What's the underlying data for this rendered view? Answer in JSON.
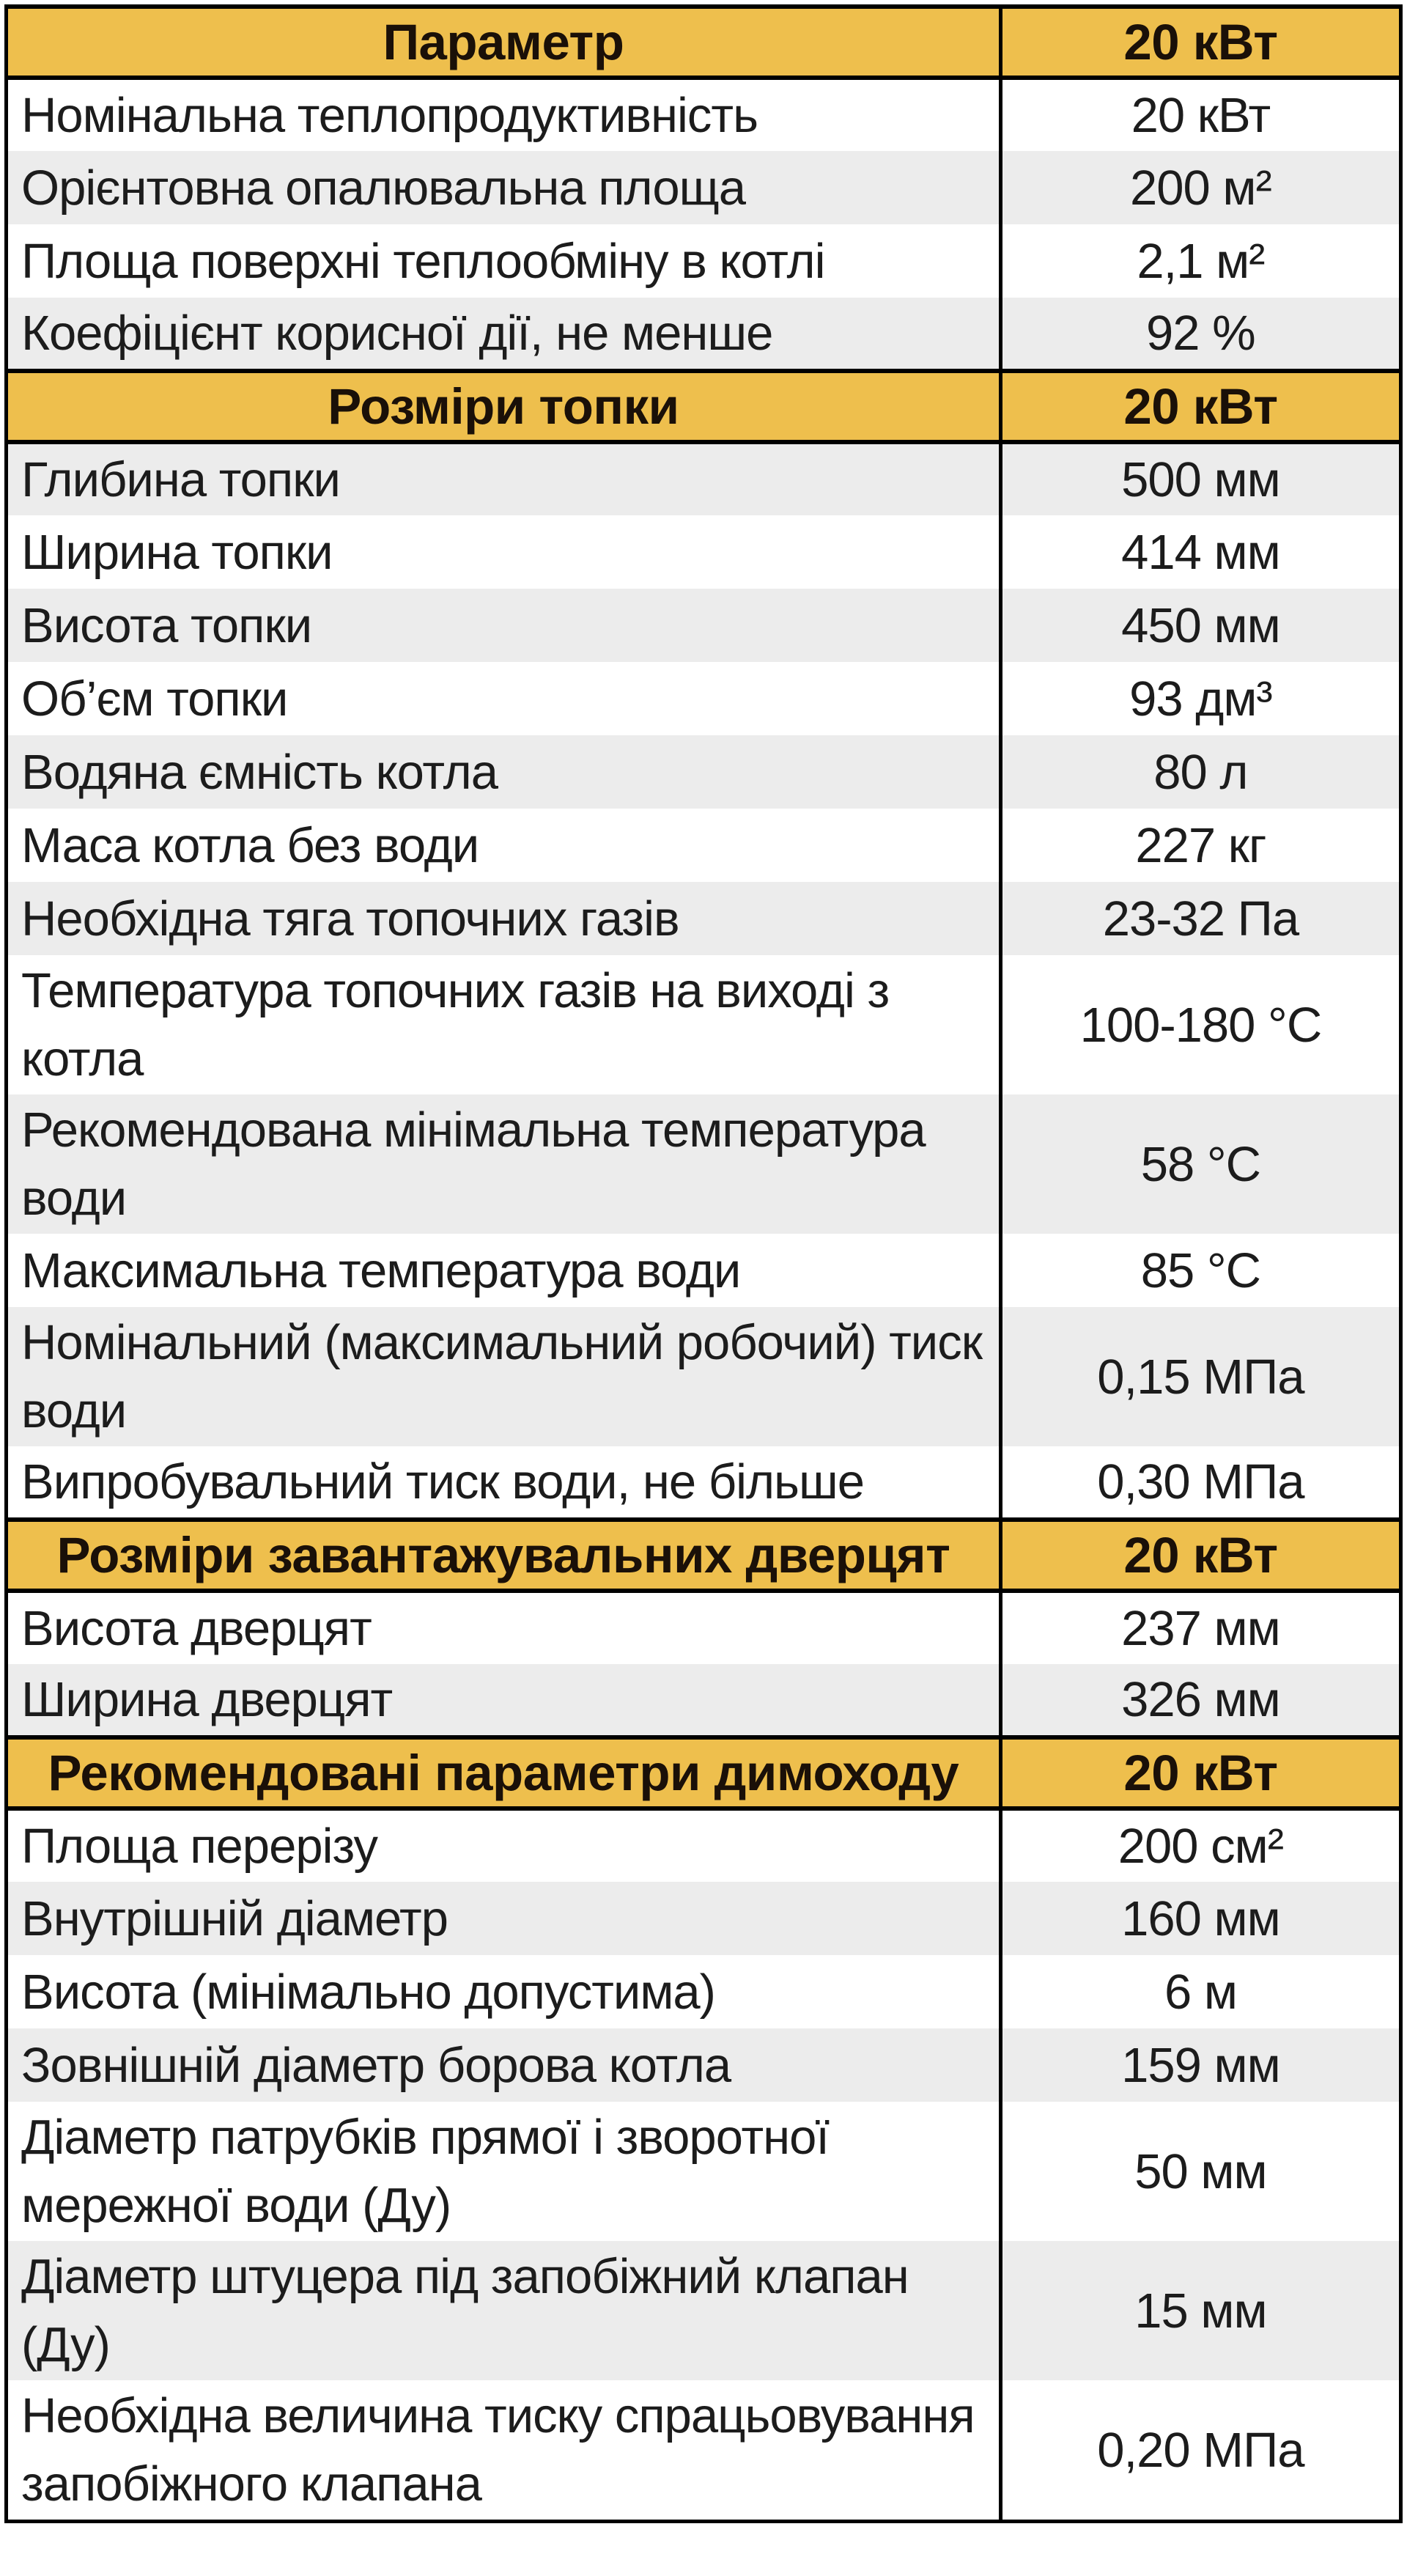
{
  "table": {
    "colors": {
      "header_bg": "#EEBF4D",
      "row_bg": "#FFFFFF",
      "row_alt_bg": "#ECECEC",
      "border": "#000000",
      "text": "#1C1C1C",
      "header_text": "#1A1008"
    },
    "sections": [
      {
        "header": {
          "label": "Параметр",
          "value": "20 кВт"
        },
        "zebra_offset": 0,
        "rows": [
          {
            "label": "Номінальна теплопродуктивність",
            "value": "20 кВт"
          },
          {
            "label": "Орієнтовна опалювальна площа",
            "value": "200 м²"
          },
          {
            "label": "Площа поверхні теплообміну в котлі",
            "value": "2,1 м²"
          },
          {
            "label": "Коефіцієнт корисної дії, не менше",
            "value": "92 %"
          }
        ]
      },
      {
        "header": {
          "label": "Розміри топки",
          "value": "20 кВт"
        },
        "zebra_offset": 1,
        "rows": [
          {
            "label": "Глибина топки",
            "value": "500 мм"
          },
          {
            "label": "Ширина топки",
            "value": "414 мм"
          },
          {
            "label": "Висота топки",
            "value": "450 мм"
          },
          {
            "label": "Об’єм топки",
            "value": "93 дм³"
          },
          {
            "label": "Водяна ємність котла",
            "value": "80 л"
          },
          {
            "label": "Маса котла без води",
            "value": "227 кг"
          },
          {
            "label": "Необхідна тяга топочних газів",
            "value": "23-32 Па"
          },
          {
            "label": "Температура топочних газів на виході з котла",
            "value": "100-180 °С"
          },
          {
            "label": "Рекомендована мінімальна температура води",
            "value": "58 °С"
          },
          {
            "label": "Максимальна температура води",
            "value": "85 °С"
          },
          {
            "label": "Номінальний (максимальний робочий) тиск води",
            "value": "0,15 МПа"
          },
          {
            "label": "Випробувальний тиск води, не більше",
            "value": "0,30 МПа"
          }
        ]
      },
      {
        "header": {
          "label": "Розміри завантажувальних дверцят",
          "value": "20 кВт"
        },
        "zebra_offset": 0,
        "rows": [
          {
            "label": "Висота дверцят",
            "value": "237 мм"
          },
          {
            "label": "Ширина дверцят",
            "value": "326 мм"
          }
        ]
      },
      {
        "header": {
          "label": "Рекомендовані параметри димоходу",
          "value": "20 кВт"
        },
        "zebra_offset": 0,
        "rows": [
          {
            "label": "Площа перерізу",
            "value": "200 см²"
          },
          {
            "label": "Внутрішній діаметр",
            "value": "160 мм"
          },
          {
            "label": "Висота (мінімально допустима)",
            "value": "6 м"
          },
          {
            "label": "Зовнішній діаметр борова котла",
            "value": "159 мм"
          },
          {
            "label": "Діаметр патрубків прямої і зворотної мережної води (Ду)",
            "value": "50 мм"
          },
          {
            "label": "Діаметр штуцера під запобіжний клапан (Ду)",
            "value": "15 мм"
          },
          {
            "label": "Необхідна величина тиску спрацьовування запобіжного клапана",
            "value": "0,20 МПа"
          }
        ]
      }
    ]
  }
}
